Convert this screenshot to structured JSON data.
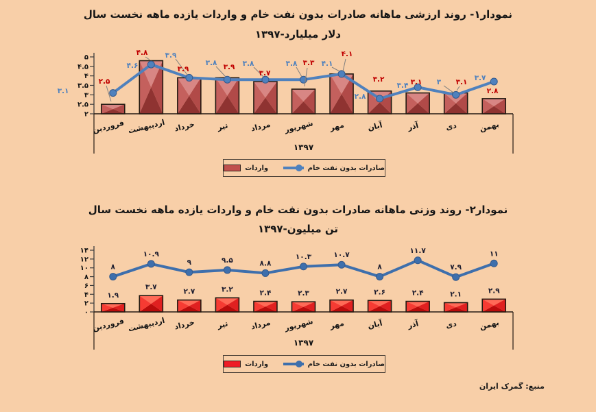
{
  "page": {
    "background": "#f8cfa8",
    "source_note": "منبع: گمرک ایران"
  },
  "chart1": {
    "title_line1": "نمودار۱- روند ارزشی ماهانه صادرات بدون نفت خام و واردات یازده ماهه نخست سال",
    "title_line2": "۱۳۹۷-میلیارد‎ دلار"
  },
  "chart2": {
    "title_line1": "نمودار۲- روند وزنی ماهانه صادرات بدون نفت خام و واردات یازده ماهه نخست سال",
    "title_line2": "۱۳۹۷-میلیون‎ تن"
  },
  "chart_data": [
    {
      "type": "bar",
      "combo": "bar+line",
      "title": "نمودار۱- روند ارزشی ماهانه صادرات بدون نفت خام و واردات یازده ماهه نخست سال",
      "subtitle": "۱۳۹۷-میلیارد دلار",
      "unit": "میلیارد دلار",
      "categories": [
        "فروردین",
        "اردیبهشت",
        "خرداد",
        "تیر",
        "مرداد",
        "شهریور",
        "مهر",
        "آبان",
        "آذر",
        "دی",
        "بهمن"
      ],
      "outer_category_label": "۱۳۹۷",
      "ylim": [
        2,
        5
      ],
      "ytick_step": 0.5,
      "ytick_labels": [
        "۲",
        "۲.۵",
        "۳",
        "۳.۵",
        "۴",
        "۴.۵",
        "۵"
      ],
      "grid": false,
      "legend_position": "bottom",
      "series": [
        {
          "name": "واردات",
          "kind": "bar",
          "color": "#c0504d",
          "label_color": "#c00000",
          "values": [
            2.5,
            4.8,
            3.9,
            3.9,
            3.7,
            3.3,
            4.1,
            3.2,
            3.1,
            3.1,
            2.8
          ],
          "labels": [
            "۲.۵",
            "۴.۸",
            "۳.۹",
            "۳.۹",
            "۳.۷",
            "۳.۳",
            "۴.۱",
            "۳.۲",
            "۳.۱",
            "۳.۱",
            "۲.۸"
          ]
        },
        {
          "name": "صادرات بدون نفت خام",
          "kind": "line",
          "color": "#4f81bd",
          "label_color": "#4f81bd",
          "values": [
            3.1,
            4.6,
            3.9,
            3.8,
            3.8,
            3.8,
            4.1,
            2.8,
            3.4,
            3,
            3.7
          ],
          "labels": [
            "۳.۱",
            "۴.۶",
            "۳.۹",
            "۳.۸",
            "۳.۸",
            "۳.۸",
            "۴.۱",
            "۲.۸",
            "۳.۴",
            "۳",
            "۳.۷"
          ]
        }
      ]
    },
    {
      "type": "bar",
      "combo": "bar+line",
      "title": "نمودار۲- روند وزنی ماهانه صادرات بدون نفت خام و واردات یازده ماهه نخست سال",
      "subtitle": "۱۳۹۷-میلیون تن",
      "unit": "میلیون تن",
      "categories": [
        "فروردین",
        "اردیبهشت",
        "خرداد",
        "تیر",
        "مرداد",
        "شهریور",
        "مهر",
        "آبان",
        "آذر",
        "دی",
        "بهمن"
      ],
      "outer_category_label": "۱۳۹۷",
      "ylim": [
        0,
        14
      ],
      "ytick_step": 2,
      "ytick_labels": [
        "۰",
        "۲",
        "۴",
        "۶",
        "۸",
        "۱۰",
        "۱۲",
        "۱۴"
      ],
      "grid": false,
      "legend_position": "bottom",
      "series": [
        {
          "name": "واردات",
          "kind": "bar",
          "color": "#ee1c25",
          "label_color": "#1c1c2e",
          "values": [
            1.9,
            3.7,
            2.7,
            3.2,
            2.4,
            2.3,
            2.7,
            2.6,
            2.4,
            2.1,
            2.9
          ],
          "labels": [
            "۱.۹",
            "۳.۷",
            "۲.۷",
            "۳.۲",
            "۲.۴",
            "۲.۳",
            "۲.۷",
            "۲.۶",
            "۲.۴",
            "۲.۱",
            "۲.۹"
          ]
        },
        {
          "name": "صادرات بدون نفت خام",
          "kind": "line",
          "color": "#3e6fac",
          "label_color": "#1c1c2e",
          "values": [
            8,
            10.9,
            9,
            9.5,
            8.8,
            10.3,
            10.7,
            8,
            11.7,
            7.9,
            11
          ],
          "labels": [
            "۸",
            "۱۰.۹",
            "۹",
            "۹.۵",
            "۸.۸",
            "۱۰.۳",
            "۱۰.۷",
            "۸",
            "۱۱.۷",
            "۷.۹",
            "۱۱"
          ]
        }
      ]
    }
  ]
}
